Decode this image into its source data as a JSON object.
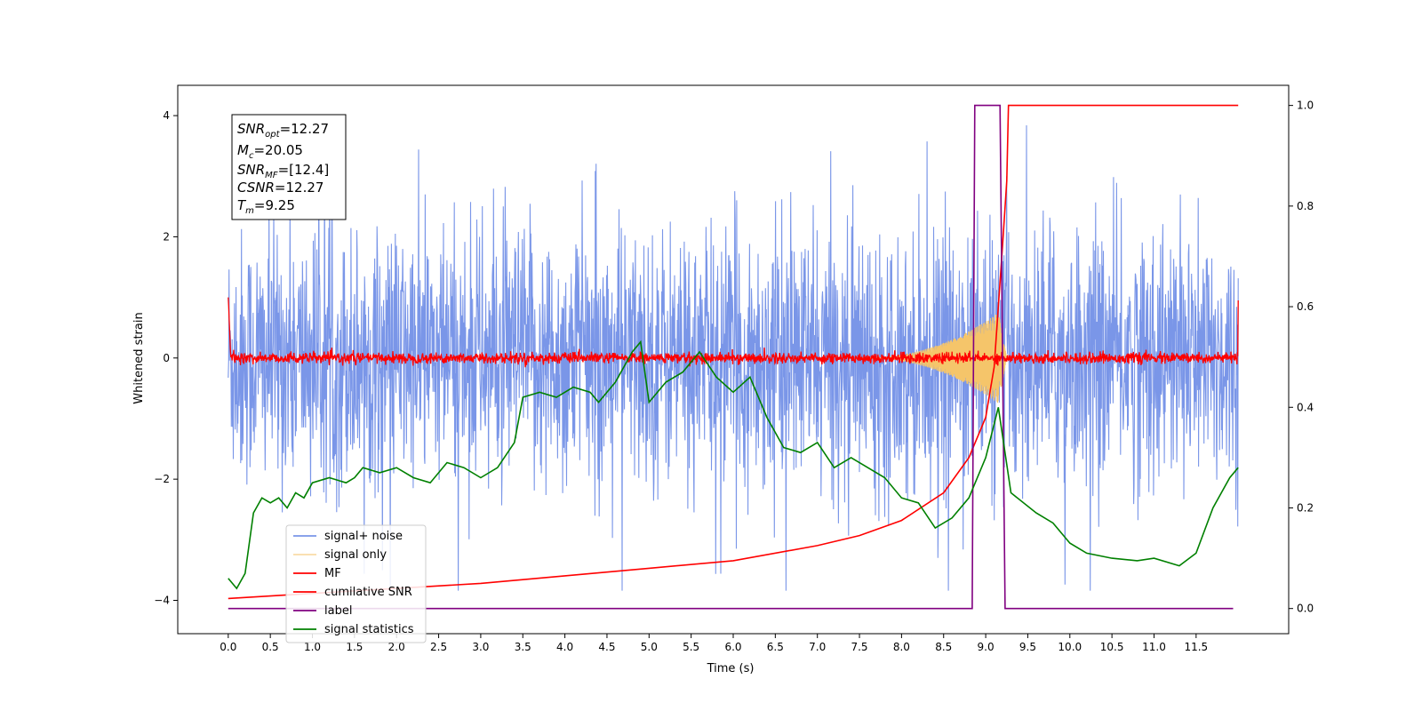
{
  "chart_data": {
    "type": "line",
    "xlabel": "Time (s)",
    "ylabel": "Whitened strain",
    "xlim": [
      -0.6,
      12.6
    ],
    "ylim": [
      -4.55,
      4.5
    ],
    "ylim_right": [
      -0.05,
      1.04
    ],
    "x_ticks": [
      "0.0",
      "0.5",
      "1.0",
      "1.5",
      "2.0",
      "2.5",
      "3.0",
      "3.5",
      "4.0",
      "4.5",
      "5.0",
      "5.5",
      "6.0",
      "6.5",
      "7.0",
      "7.5",
      "8.0",
      "8.5",
      "9.0",
      "9.5",
      "10.0",
      "10.5",
      "11.0",
      "11.5"
    ],
    "y_ticks": [
      "-4",
      "-2",
      "0",
      "2",
      "4"
    ],
    "y_ticks_right": [
      "0.0",
      "0.2",
      "0.4",
      "0.6",
      "0.8",
      "1.0"
    ],
    "annotation": {
      "snr_opt": {
        "base": "SNR",
        "sub": "opt",
        "value": "=12.27"
      },
      "mc": {
        "base": "M",
        "sub": "c",
        "value": "=20.05"
      },
      "snr_mf": {
        "base": "SNR",
        "sub": "MF",
        "value": "=[12.4]"
      },
      "csnr": {
        "base": "CSNR",
        "sub": "",
        "value": "=12.27"
      },
      "tm": {
        "base": "T",
        "sub": "m",
        "value": "=9.25"
      }
    },
    "legend_position": "lower-left",
    "series": [
      {
        "name": "signal+ noise",
        "color": "#7a96e8",
        "axis": "left",
        "x_range": [
          0,
          12
        ],
        "amplitude": 3.0,
        "description": "noisy whitened strain"
      },
      {
        "name": "signal only",
        "color": "#f5c56a",
        "axis": "left",
        "x_range": [
          7.5,
          9.25
        ],
        "peak_amplitude": 0.75,
        "peak_time": 9.15
      },
      {
        "name": "MF",
        "color": "#ff0000",
        "axis": "left",
        "x_range": [
          0,
          12
        ],
        "baseline": 0.0,
        "noise_amplitude": 0.1,
        "edge_values": [
          1.0,
          0.95
        ]
      },
      {
        "name": "cumilative SNR",
        "color": "#ff0000",
        "axis": "right",
        "points": [
          [
            0.0,
            0.02
          ],
          [
            1.0,
            0.03
          ],
          [
            2.0,
            0.04
          ],
          [
            3.0,
            0.05
          ],
          [
            4.0,
            0.065
          ],
          [
            5.0,
            0.08
          ],
          [
            6.0,
            0.095
          ],
          [
            7.0,
            0.125
          ],
          [
            7.5,
            0.145
          ],
          [
            8.0,
            0.175
          ],
          [
            8.5,
            0.23
          ],
          [
            8.8,
            0.3
          ],
          [
            9.0,
            0.38
          ],
          [
            9.1,
            0.48
          ],
          [
            9.2,
            0.72
          ],
          [
            9.25,
            0.85
          ],
          [
            9.27,
            1.0
          ],
          [
            12.0,
            1.0
          ]
        ]
      },
      {
        "name": "label",
        "color": "#800080",
        "axis": "right",
        "points": [
          [
            0.0,
            0.0
          ],
          [
            8.84,
            0.0
          ],
          [
            8.87,
            1.0
          ],
          [
            9.17,
            1.0
          ],
          [
            9.23,
            0.0
          ],
          [
            11.94,
            0.0
          ]
        ]
      },
      {
        "name": "signal statistics",
        "color": "#008000",
        "axis": "right",
        "points": [
          [
            0.0,
            0.06
          ],
          [
            0.1,
            0.04
          ],
          [
            0.2,
            0.07
          ],
          [
            0.3,
            0.19
          ],
          [
            0.4,
            0.22
          ],
          [
            0.5,
            0.21
          ],
          [
            0.6,
            0.22
          ],
          [
            0.7,
            0.2
          ],
          [
            0.8,
            0.23
          ],
          [
            0.9,
            0.22
          ],
          [
            1.0,
            0.25
          ],
          [
            1.2,
            0.26
          ],
          [
            1.4,
            0.25
          ],
          [
            1.5,
            0.26
          ],
          [
            1.6,
            0.28
          ],
          [
            1.8,
            0.27
          ],
          [
            2.0,
            0.28
          ],
          [
            2.2,
            0.26
          ],
          [
            2.4,
            0.25
          ],
          [
            2.6,
            0.29
          ],
          [
            2.8,
            0.28
          ],
          [
            3.0,
            0.26
          ],
          [
            3.2,
            0.28
          ],
          [
            3.4,
            0.33
          ],
          [
            3.5,
            0.42
          ],
          [
            3.7,
            0.43
          ],
          [
            3.9,
            0.42
          ],
          [
            4.1,
            0.44
          ],
          [
            4.3,
            0.43
          ],
          [
            4.4,
            0.41
          ],
          [
            4.6,
            0.45
          ],
          [
            4.8,
            0.51
          ],
          [
            4.9,
            0.53
          ],
          [
            5.0,
            0.41
          ],
          [
            5.2,
            0.45
          ],
          [
            5.4,
            0.47
          ],
          [
            5.6,
            0.51
          ],
          [
            5.8,
            0.46
          ],
          [
            6.0,
            0.43
          ],
          [
            6.2,
            0.46
          ],
          [
            6.4,
            0.38
          ],
          [
            6.6,
            0.32
          ],
          [
            6.8,
            0.31
          ],
          [
            7.0,
            0.33
          ],
          [
            7.2,
            0.28
          ],
          [
            7.4,
            0.3
          ],
          [
            7.6,
            0.28
          ],
          [
            7.8,
            0.26
          ],
          [
            8.0,
            0.22
          ],
          [
            8.2,
            0.21
          ],
          [
            8.4,
            0.16
          ],
          [
            8.6,
            0.18
          ],
          [
            8.8,
            0.22
          ],
          [
            9.0,
            0.3
          ],
          [
            9.15,
            0.4
          ],
          [
            9.3,
            0.23
          ],
          [
            9.6,
            0.19
          ],
          [
            9.8,
            0.17
          ],
          [
            10.0,
            0.13
          ],
          [
            10.2,
            0.11
          ],
          [
            10.5,
            0.1
          ],
          [
            10.8,
            0.095
          ],
          [
            11.0,
            0.1
          ],
          [
            11.3,
            0.085
          ],
          [
            11.5,
            0.11
          ],
          [
            11.7,
            0.2
          ],
          [
            11.9,
            0.26
          ],
          [
            12.0,
            0.28
          ]
        ]
      }
    ]
  }
}
